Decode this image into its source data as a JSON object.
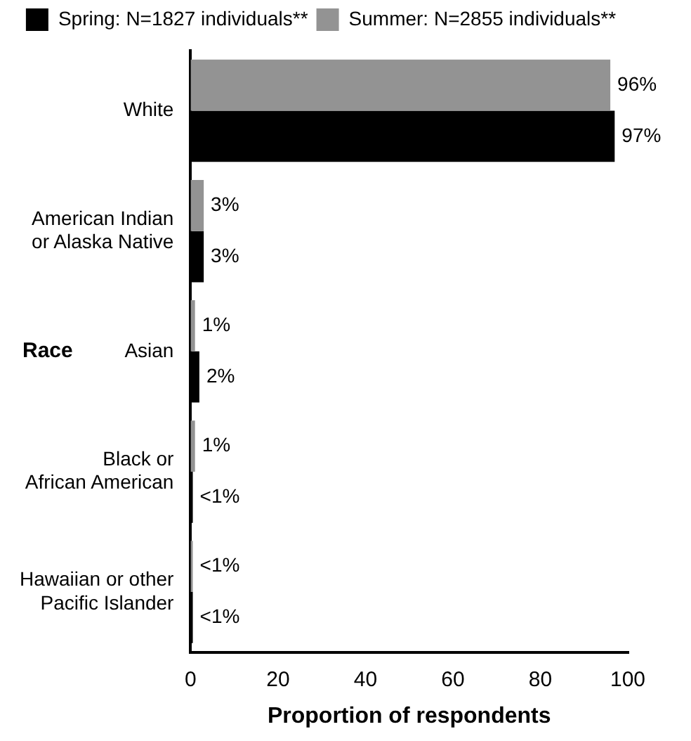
{
  "chart_data": {
    "type": "bar",
    "orientation": "horizontal",
    "xlabel": "Proportion of respondents",
    "ylabel": "Race",
    "categories": [
      "White",
      "American Indian\nor Alaska Native",
      "Asian",
      "Black or\nAfrican American",
      "Hawaiian or other\nPacific Islander"
    ],
    "series": [
      {
        "name": "Summer: N=2855 individuals**",
        "color": "#939393",
        "values": [
          96,
          3,
          1,
          1,
          0.5
        ],
        "value_labels": [
          "96%",
          "3%",
          "1%",
          "1%",
          "<1%"
        ]
      },
      {
        "name": "Spring: N=1827 individuals**",
        "color": "#000000",
        "values": [
          97,
          3,
          2,
          0.5,
          0.5
        ],
        "value_labels": [
          "97%",
          "3%",
          "2%",
          "<1%",
          "<1%"
        ]
      }
    ],
    "xlim": [
      0,
      100
    ],
    "xticks": [
      0,
      20,
      40,
      60,
      80,
      100
    ],
    "grid": false,
    "legend": "top"
  }
}
